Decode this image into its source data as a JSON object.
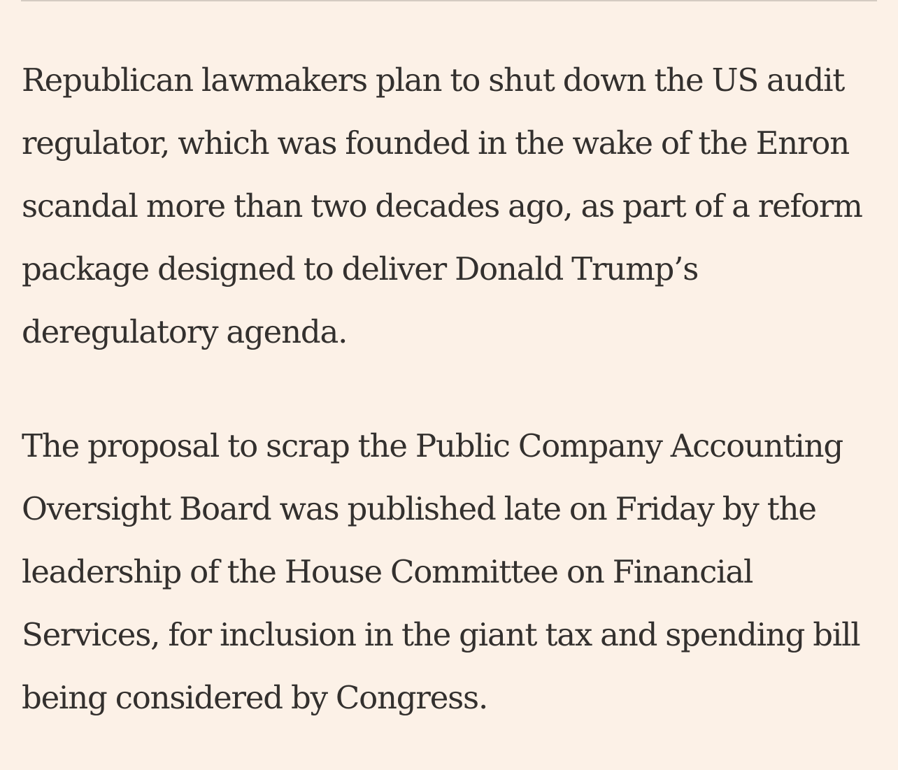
{
  "article": {
    "paragraphs": [
      "Republican lawmakers plan to shut down the US audit regulator, which was founded in the wake of the Enron scandal more than two decades ago, as part of a reform package designed to deliver Donald Trump’s deregulatory agenda.",
      "The proposal to scrap the Public Company Accounting Oversight Board was published late on Friday by the leadership of the House Committee on Financial Services, for inclusion in the giant tax and spending bill being considered by Congress."
    ]
  },
  "colors": {
    "background": "#fcf1e7",
    "text": "#33302e",
    "divider": "#d4cbc2"
  }
}
